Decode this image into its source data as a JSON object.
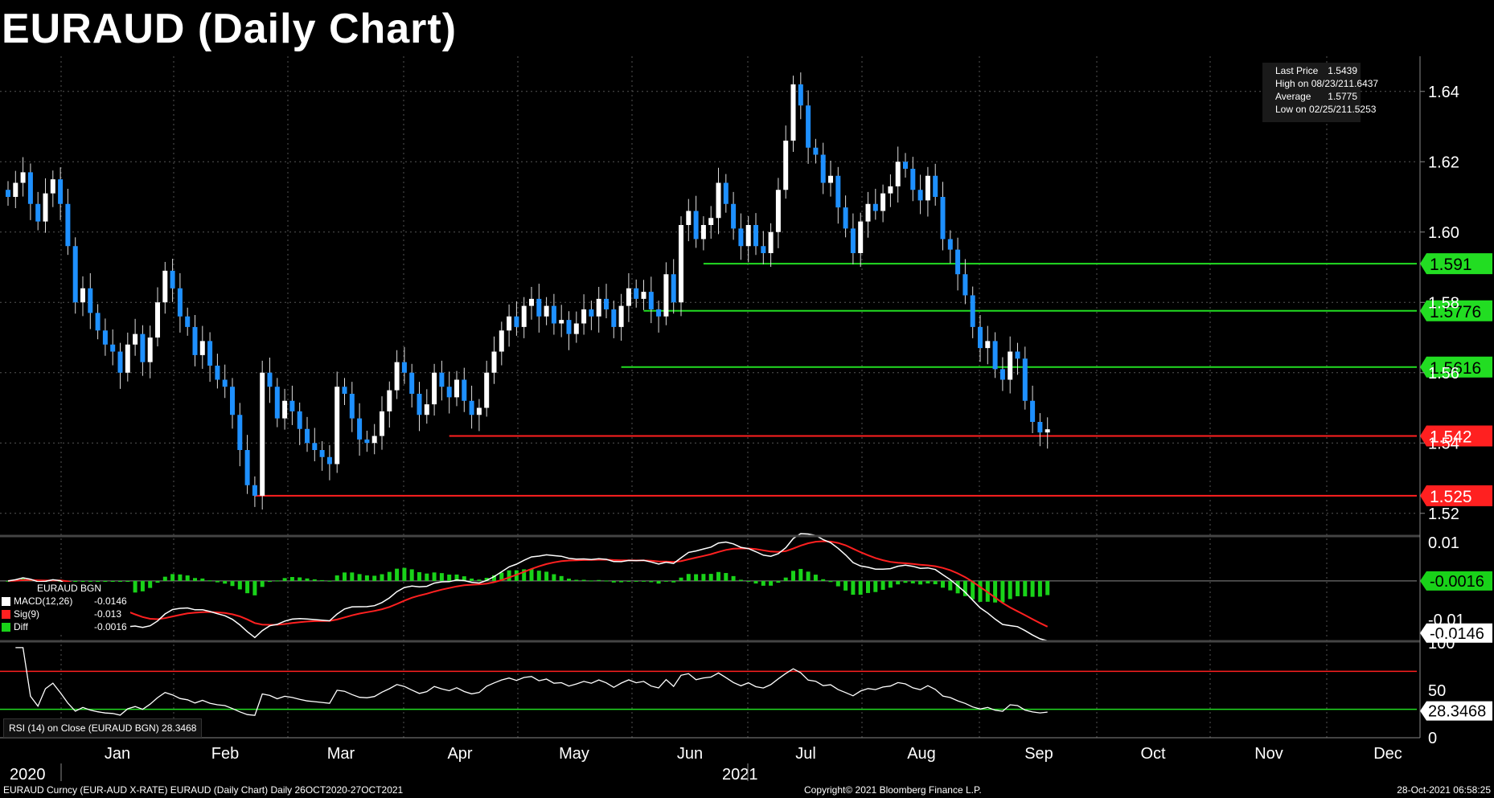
{
  "title": "EURAUD (Daily Chart)",
  "footer": {
    "left": "EURAUD Curncy (EUR-AUD X-RATE) EURAUD (Daily Chart)  Daily 26OCT2020-27OCT2021",
    "center": "Copyright© 2021 Bloomberg Finance L.P.",
    "right": "28-Oct-2021 06:58:25"
  },
  "legend": [
    {
      "label": "Last Price",
      "value": "1.5439"
    },
    {
      "label": "High on 08/23/21",
      "value": "1.6437"
    },
    {
      "label": "Average",
      "value": "1.5775"
    },
    {
      "label": "Low on 02/25/21",
      "value": "1.5253"
    }
  ],
  "macd_legend": {
    "title": "EURAUD BGN",
    "rows": [
      {
        "label": "MACD(12,26)",
        "value": "-0.0146",
        "color": "#ffffff"
      },
      {
        "label": "Sig(9)",
        "value": "-0.013",
        "color": "#ff2020"
      },
      {
        "label": "Diff",
        "value": "-0.0016",
        "color": "#19d219"
      }
    ]
  },
  "rsi_legend": "RSI (14)  on Close (EURAUD BGN) 28.3468",
  "colors": {
    "up": "#ffffff",
    "down": "#1e90ff",
    "support": "#22dd22",
    "resistance": "#ff2020"
  },
  "chart_data": [
    {
      "type": "candlestick",
      "title": "EURAUD (Daily Chart)",
      "x_tick_labels": [
        "Jan",
        "Feb",
        "Mar",
        "Apr",
        "May",
        "Jun",
        "Jul",
        "Aug",
        "Sep",
        "Oct",
        "Nov",
        "Dec"
      ],
      "year_labels": [
        "2020",
        "2021"
      ],
      "y_ticks": [
        1.52,
        1.54,
        1.56,
        1.58,
        1.6,
        1.62,
        1.64
      ],
      "ylim": [
        1.514,
        1.65
      ],
      "close_series": [
        1.61,
        1.614,
        1.617,
        1.608,
        1.603,
        1.611,
        1.615,
        1.608,
        1.596,
        1.58,
        1.584,
        1.577,
        1.572,
        1.568,
        1.566,
        1.56,
        1.568,
        1.571,
        1.563,
        1.57,
        1.58,
        1.589,
        1.584,
        1.576,
        1.573,
        1.565,
        1.569,
        1.562,
        1.558,
        1.556,
        1.548,
        1.538,
        1.528,
        1.525,
        1.56,
        1.556,
        1.547,
        1.552,
        1.549,
        1.544,
        1.54,
        1.538,
        1.536,
        1.534,
        1.556,
        1.554,
        1.547,
        1.541,
        1.54,
        1.542,
        1.549,
        1.555,
        1.563,
        1.56,
        1.554,
        1.548,
        1.551,
        1.56,
        1.556,
        1.553,
        1.558,
        1.552,
        1.548,
        1.55,
        1.56,
        1.566,
        1.572,
        1.576,
        1.573,
        1.579,
        1.581,
        1.576,
        1.579,
        1.574,
        1.575,
        1.571,
        1.574,
        1.578,
        1.576,
        1.581,
        1.578,
        1.573,
        1.579,
        1.584,
        1.581,
        1.583,
        1.578,
        1.576,
        1.588,
        1.58,
        1.602,
        1.606,
        1.598,
        1.602,
        1.604,
        1.614,
        1.608,
        1.601,
        1.596,
        1.602,
        1.596,
        1.594,
        1.6,
        1.612,
        1.626,
        1.642,
        1.636,
        1.624,
        1.622,
        1.614,
        1.616,
        1.607,
        1.601,
        1.594,
        1.603,
        1.608,
        1.606,
        1.611,
        1.613,
        1.62,
        1.618,
        1.612,
        1.609,
        1.616,
        1.61,
        1.598,
        1.595,
        1.588,
        1.582,
        1.573,
        1.567,
        1.569,
        1.561,
        1.558,
        1.566,
        1.564,
        1.552,
        1.546,
        1.543,
        1.5439
      ],
      "hlines": [
        {
          "value": 1.591,
          "label": "1.591",
          "color": "support"
        },
        {
          "value": 1.5776,
          "label": "1.5776",
          "color": "support"
        },
        {
          "value": 1.5616,
          "label": "1.5616",
          "color": "support"
        },
        {
          "value": 1.542,
          "label": "1.542",
          "color": "resistance"
        },
        {
          "value": 1.525,
          "label": "1.525",
          "color": "resistance"
        }
      ],
      "legend_position": "top-right"
    },
    {
      "type": "macd",
      "y_tick_labels": [
        "0.01",
        "-0.01"
      ],
      "current_labels": [
        "-0.0016",
        "-0.0146"
      ],
      "ylim": [
        -0.015,
        0.011
      ]
    },
    {
      "type": "line",
      "name": "RSI (14)",
      "y_ticks": [
        0,
        50,
        100
      ],
      "reference_lines": [
        70,
        30
      ],
      "current_label": "28.3468"
    }
  ]
}
